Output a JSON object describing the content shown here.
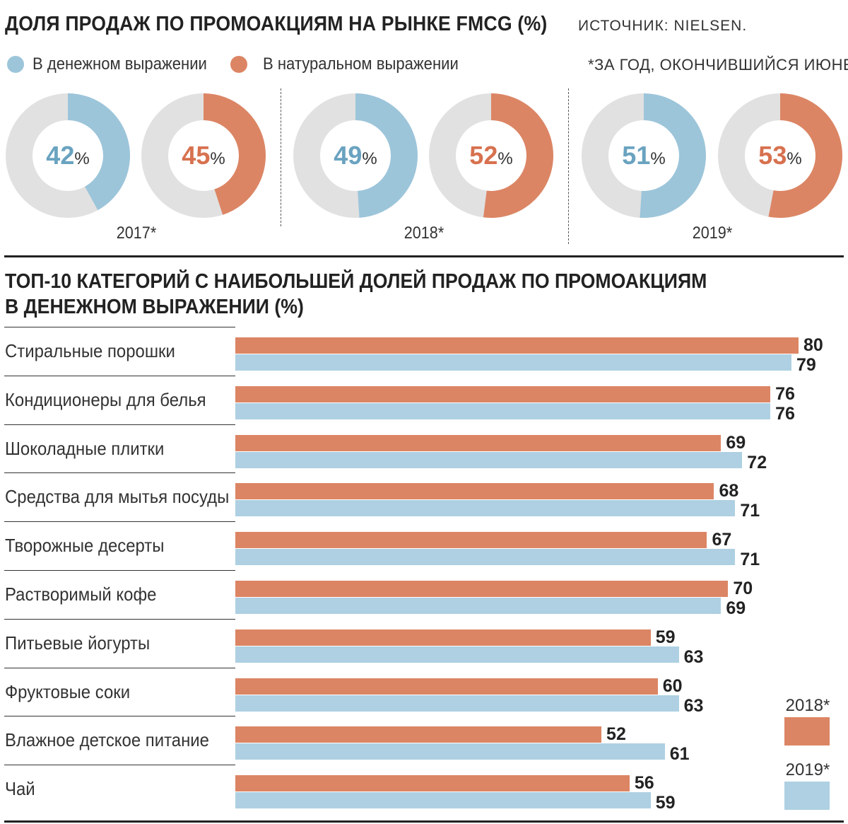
{
  "header": {
    "title": "ДОЛЯ ПРОДАЖ ПО ПРОМОАКЦИЯМ НА РЫНКЕ FMCG (%)",
    "source": "ИСТОЧНИК: NIELSEN.",
    "footnote": "*ЗА ГОД, ОКОНЧИВШИЙСЯ ИЮНЕМ."
  },
  "legend": {
    "monetary": "В денежном выражении",
    "natural": "В натуральном выражении"
  },
  "colors": {
    "monetary": "#9cc5da",
    "natural": "#dc8564",
    "remainder": "#e1e1e1",
    "monetary_text": "#6aa3c0",
    "natural_text": "#d7714f"
  },
  "chart_data": [
    {
      "type": "pie",
      "title": "ДОЛЯ ПРОДАЖ ПО ПРОМОАКЦИЯМ НА РЫНКЕ FMCG (%)",
      "years": [
        {
          "label": "2017*",
          "monetary": 42,
          "natural": 45,
          "monetary_text": "42",
          "natural_text": "45"
        },
        {
          "label": "2018*",
          "monetary": 49,
          "natural": 52,
          "monetary_text": "49",
          "natural_text": "52"
        },
        {
          "label": "2019*",
          "monetary": 51,
          "natural": 53,
          "monetary_text": "51",
          "natural_text": "53"
        }
      ],
      "unit": "%"
    },
    {
      "type": "bar",
      "title": "ТОП-10 КАТЕГОРИЙ С НАИБОЛЬШЕЙ ДОЛЕЙ ПРОДАЖ ПО ПРОМОАКЦИЯМ В ДЕНЕЖНОМ ВЫРАЖЕНИИ (%)",
      "title_line1": "ТОП-10 КАТЕГОРИЙ С НАИБОЛЬШЕЙ ДОЛЕЙ ПРОДАЖ ПО ПРОМОАКЦИЯМ",
      "title_line2": "В ДЕНЕЖНОМ ВЫРАЖЕНИИ (%)",
      "orientation": "horizontal",
      "xlim": [
        0,
        80
      ],
      "categories": [
        "Стиральные порошки",
        "Кондиционеры для белья",
        "Шоколадные плитки",
        "Средства для мытья посуды",
        "Творожные десерты",
        "Растворимый кофе",
        "Питьевые йогурты",
        "Фруктовые соки",
        "Влажное детское питание",
        "Чай"
      ],
      "series": [
        {
          "name": "2018*",
          "color": "#dc8564",
          "values": [
            80,
            76,
            69,
            68,
            67,
            70,
            59,
            60,
            52,
            56
          ]
        },
        {
          "name": "2019*",
          "color": "#aed0e2",
          "values": [
            79,
            76,
            72,
            71,
            71,
            69,
            63,
            63,
            61,
            59
          ]
        }
      ],
      "legend_position": "bottom-right"
    }
  ]
}
